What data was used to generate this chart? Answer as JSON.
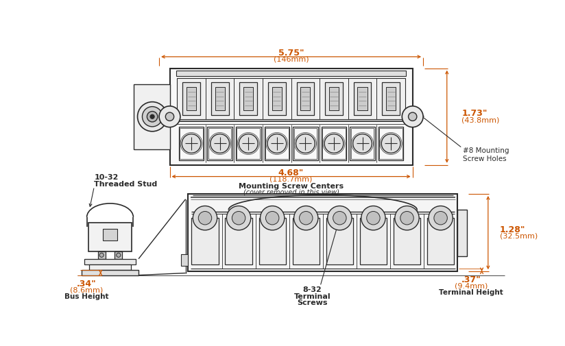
{
  "bg_color": "#ffffff",
  "line_color": "#2a2a2a",
  "dim_color": "#cc5500",
  "fig_width": 8.24,
  "fig_height": 5.06,
  "annotations": {
    "dim_575_label": "5.75\"",
    "dim_575_mm": "(146mm)",
    "dim_468_label": "4.68\"",
    "dim_468_mm": "(118.7mm)",
    "dim_mounting_label": "Mounting Screw Centers",
    "dim_mounting_sub": "(cover removed in this view)",
    "dim_173_label": "1.73\"",
    "dim_173_mm": "(43.8mm)",
    "dim_8_label": "#8 Mounting\nScrew Holes",
    "dim_threaded_stud": "10-32\nThreaded Stud",
    "dim_034_label": ".34\"",
    "dim_034_mm": "(8.6mm)",
    "dim_bus_height": "Bus Height",
    "dim_832_label": "8-32\nTerminal\nScrews",
    "dim_037_label": ".37\"",
    "dim_037_mm": "(9.4mm)",
    "dim_terminal_height": "Terminal Height",
    "dim_128_label": "1.28\"",
    "dim_128_mm": "(32.5mm)"
  }
}
